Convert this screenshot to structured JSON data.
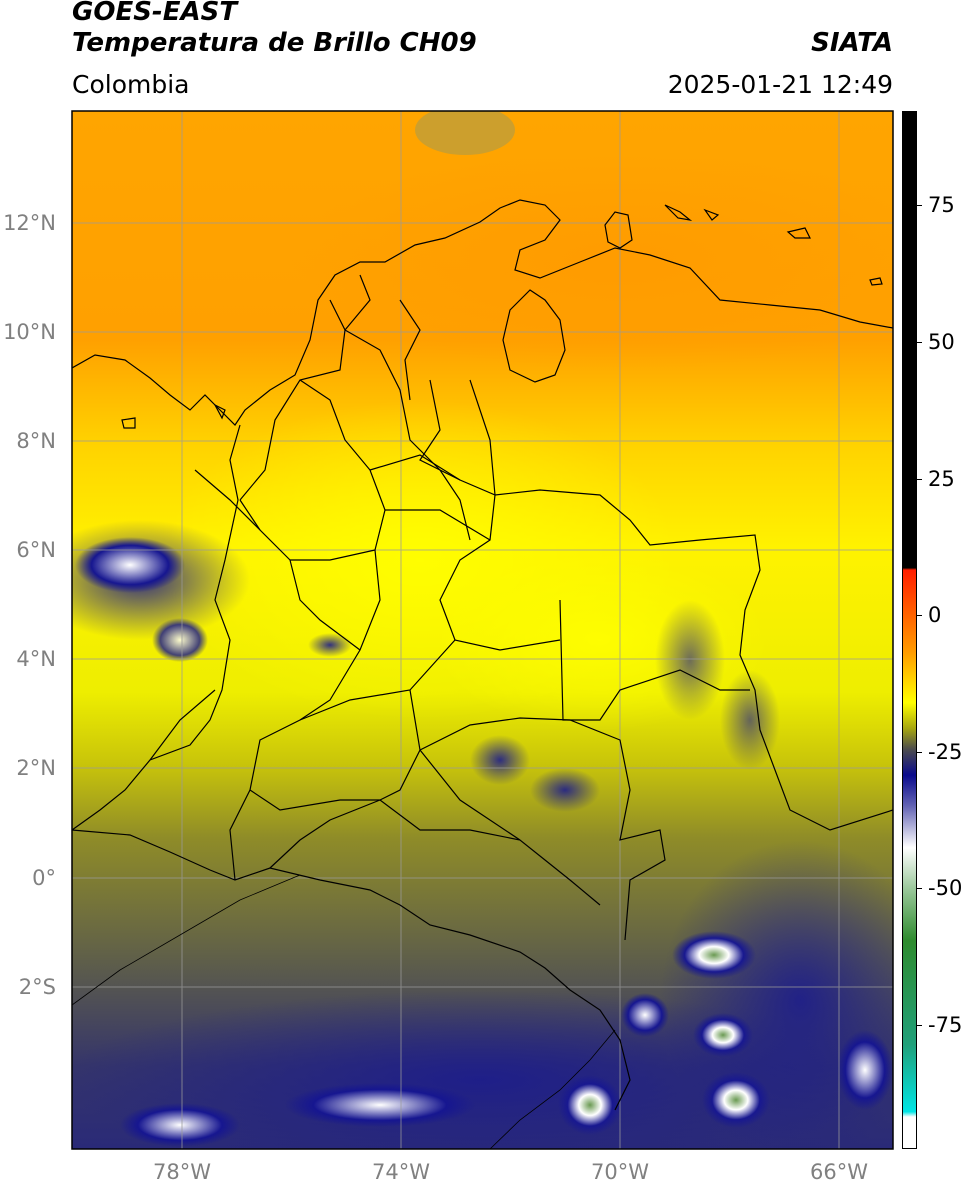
{
  "header": {
    "line1": "GOES-EAST",
    "line2": "Temperatura de Brillo CH09",
    "brand": "SIATA",
    "region": "Colombia",
    "timestamp": "2025-01-21 12:49"
  },
  "axes": {
    "lat_labels": [
      {
        "text": "12°N",
        "value": 12
      },
      {
        "text": "10°N",
        "value": 10
      },
      {
        "text": "8°N",
        "value": 8
      },
      {
        "text": "6°N",
        "value": 6
      },
      {
        "text": "4°N",
        "value": 4
      },
      {
        "text": "2°N",
        "value": 2
      },
      {
        "text": "0°",
        "value": 0
      },
      {
        "text": "2°S",
        "value": -2
      }
    ],
    "lon_labels": [
      {
        "text": "78°W",
        "value": -78
      },
      {
        "text": "74°W",
        "value": -74
      },
      {
        "text": "70°W",
        "value": -70
      },
      {
        "text": "66°W",
        "value": -66
      }
    ]
  },
  "colorbar": {
    "ticks": [
      "75",
      "50",
      "25",
      "0",
      "-25",
      "-50",
      "-75"
    ],
    "colors": {
      "black": "#000000",
      "red": "#ff1e00",
      "orange": "#ff9900",
      "yellow": "#ffff00",
      "olive": "#a6a60f",
      "gray": "#4d4d4d",
      "navy": "#0a0a8c",
      "white": "#ffffff",
      "green": "#2e8b2e",
      "cyan": "#00e5e5"
    }
  }
}
